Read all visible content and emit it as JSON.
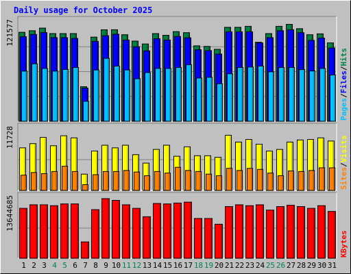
{
  "chart_data": {
    "type": "bar",
    "title": "Daily usage for October 2025",
    "categories": [
      "1",
      "2",
      "3",
      "4",
      "5",
      "6",
      "7",
      "8",
      "9",
      "10",
      "11",
      "12",
      "13",
      "14",
      "15",
      "16",
      "17",
      "18",
      "19",
      "20",
      "21",
      "22",
      "23",
      "24",
      "25",
      "26",
      "27",
      "28",
      "29",
      "30",
      "31"
    ],
    "weekend_days": [
      "4",
      "5",
      "11",
      "12",
      "18",
      "19",
      "25",
      "26"
    ],
    "panels": [
      {
        "id": "hits-files-pages",
        "max_label": "121577",
        "ymax": 121577,
        "series": [
          {
            "name": "Hits",
            "color": "#008040",
            "values": [
              108900,
              110800,
              114000,
              107300,
              107300,
              107300,
              42300,
              103000,
              112000,
              112000,
              105900,
              98100,
              94600,
              107300,
              105200,
              109700,
              108400,
              92300,
              91600,
              88100,
              115000,
              115000,
              116200,
              96700,
              107300,
              116200,
              118600,
              113300,
              105900,
              107000,
              95900
            ]
          },
          {
            "name": "Files",
            "color": "#0000ff",
            "values": [
              103500,
              106200,
              108500,
              102300,
              102300,
              101400,
              40500,
              97800,
              104700,
              106500,
              99400,
              91200,
              86200,
              101000,
              99400,
              103800,
              102100,
              87500,
              86500,
              82200,
              109500,
              109500,
              109500,
              95900,
              102300,
              110800,
              112000,
              108400,
              99000,
              101800,
              89600
            ]
          },
          {
            "name": "Pages",
            "color": "#00c0ff",
            "values": [
              61300,
              70300,
              64600,
              61300,
              63400,
              65800,
              24400,
              62700,
              77000,
              67500,
              62800,
              52000,
              59600,
              64600,
              64600,
              65800,
              69100,
              52900,
              53800,
              45900,
              58100,
              65800,
              66400,
              67500,
              60500,
              65800,
              65800,
              63200,
              61500,
              64600,
              56600
            ]
          }
        ]
      },
      {
        "id": "visits-sites",
        "max_label": "11728",
        "ymax": 11728,
        "series": [
          {
            "name": "Visits",
            "color": "#ffff00",
            "values": [
              8100,
              8900,
              10100,
              8500,
              10400,
              10000,
              3100,
              7500,
              8600,
              8100,
              8600,
              6800,
              5200,
              7800,
              8600,
              6500,
              8300,
              6600,
              6600,
              6300,
              10500,
              9200,
              9700,
              8800,
              7500,
              7800,
              9200,
              9600,
              9700,
              10000,
              9400
            ]
          },
          {
            "name": "Sites",
            "color": "#ff8000",
            "values": [
              2900,
              3400,
              3200,
              3600,
              4600,
              3600,
              1100,
              3000,
              3600,
              3600,
              3800,
              3500,
              2800,
              3600,
              3300,
              4400,
              3800,
              3600,
              3100,
              2800,
              4200,
              3800,
              4200,
              4000,
              3300,
              2800,
              3700,
              3600,
              3800,
              4300,
              4300
            ]
          }
        ]
      },
      {
        "id": "kbytes",
        "max_label": "13644685",
        "ymax": 13644685,
        "series": [
          {
            "name": "KBytes",
            "color": "#ff0000",
            "values": [
              11300000,
              12100000,
              12100000,
              11900000,
              12300000,
              12300000,
              3700000,
              11000000,
              13500000,
              13100000,
              12100000,
              11300000,
              9400000,
              12400000,
              12300000,
              12500000,
              12700000,
              9000000,
              9000000,
              7700000,
              11700000,
              12100000,
              11900000,
              12100000,
              10900000,
              11700000,
              12000000,
              11700000,
              11300000,
              11900000,
              10600000
            ]
          }
        ]
      }
    ],
    "right_labels": {
      "panel1": [
        "Pages",
        "/",
        "Files",
        "/",
        "Hits"
      ],
      "panel2": [
        "Sites",
        "/",
        "Visits"
      ],
      "panel3": [
        "KBytes"
      ]
    },
    "label_colors": {
      "Pages": "#00c0ff",
      "Files": "#0000ff",
      "Hits": "#008040",
      "Sites": "#ff8000",
      "Visits": "#ffff00",
      "KBytes": "#ff0000",
      "slash": "#000000",
      "title": "#0000ff",
      "weekday": "#000000",
      "weekend": "#00805c"
    },
    "grid": true
  }
}
